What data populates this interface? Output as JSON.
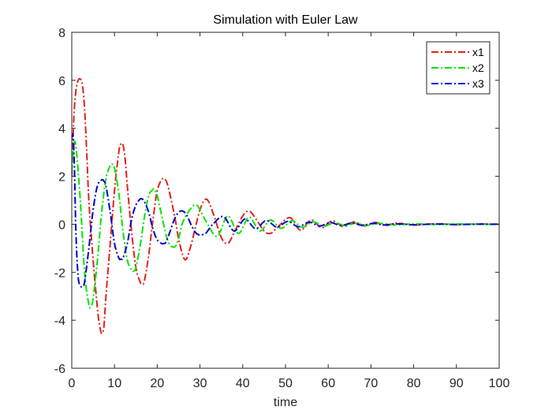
{
  "chart_data": {
    "type": "line",
    "title": "Simulation with Euler Law",
    "xlabel": "time",
    "ylabel": "",
    "xlim": [
      0,
      100
    ],
    "ylim": [
      -6,
      8
    ],
    "xticks": [
      0,
      10,
      20,
      30,
      40,
      50,
      60,
      70,
      80,
      90,
      100
    ],
    "yticks": [
      -6,
      -4,
      -2,
      0,
      2,
      4,
      6,
      8
    ],
    "grid": false,
    "legend_position": "top-right",
    "series": [
      {
        "name": "x1",
        "color": "#e3201b",
        "line_style": "dash-dot",
        "x": [
          0,
          0.5,
          1,
          1.5,
          2,
          2.5,
          3,
          3.5,
          4,
          5,
          6,
          6.5,
          7,
          7.5,
          8,
          9,
          10,
          11,
          11.5,
          12,
          12.5,
          13,
          14,
          15,
          16,
          16.5,
          17,
          18,
          19,
          20,
          21,
          21.7,
          22.5,
          24,
          25,
          26,
          26.8,
          28,
          30,
          31.5,
          33,
          35,
          36.5,
          38,
          40,
          41.5,
          43,
          45,
          46.5,
          48,
          51,
          53.5,
          56,
          58.5,
          61,
          63.5,
          66,
          68.5,
          71,
          73.5,
          76,
          80,
          85,
          90,
          95,
          100
        ],
        "y": [
          2,
          4.5,
          5.6,
          6.0,
          6.05,
          5.8,
          4.8,
          3.0,
          1.0,
          -1.5,
          -3.5,
          -4.2,
          -4.55,
          -4.3,
          -3.0,
          -0.8,
          1.4,
          3.0,
          3.35,
          3.3,
          2.7,
          1.6,
          -0.3,
          -1.8,
          -2.4,
          -2.5,
          -2.35,
          -1.3,
          0.2,
          1.4,
          1.85,
          1.9,
          1.6,
          0.4,
          -0.6,
          -1.3,
          -1.45,
          -0.8,
          0.6,
          1.05,
          0.5,
          -0.55,
          -0.8,
          -0.35,
          0.35,
          0.55,
          0.25,
          -0.28,
          -0.38,
          -0.15,
          0.28,
          -0.25,
          0.18,
          -0.14,
          0.15,
          -0.1,
          0.1,
          -0.07,
          0.08,
          -0.05,
          0.05,
          -0.03,
          0.02,
          -0.01,
          0.01,
          0
        ]
      },
      {
        "name": "x2",
        "color": "#00e600",
        "line_style": "dash-dot",
        "x": [
          0,
          0.5,
          1,
          2,
          3,
          4,
          4.5,
          5,
          6,
          7,
          8,
          9,
          9.5,
          10,
          11,
          12,
          13,
          14,
          14.5,
          15,
          16,
          17,
          18,
          19,
          19.3,
          20,
          21,
          22.5,
          24,
          25,
          26,
          28,
          29.2,
          30,
          31.5,
          34,
          36.5,
          39,
          41.5,
          44,
          46.5,
          49,
          51.5,
          54,
          56.5,
          59,
          61.5,
          64,
          66.5,
          69,
          72,
          76,
          80,
          85,
          90,
          95,
          100
        ],
        "y": [
          2.2,
          3.3,
          3.2,
          1.0,
          -2.0,
          -3.35,
          -3.4,
          -3.1,
          -1.5,
          0.5,
          1.9,
          2.45,
          2.5,
          2.35,
          1.3,
          -0.3,
          -1.5,
          -1.9,
          -1.95,
          -1.8,
          -0.9,
          0.3,
          1.2,
          1.45,
          1.45,
          1.2,
          0.4,
          -0.7,
          -0.95,
          -0.6,
          0.1,
          0.7,
          0.8,
          0.6,
          0.1,
          -0.5,
          0.35,
          -0.38,
          0.3,
          -0.28,
          0.18,
          -0.17,
          0.15,
          -0.12,
          0.1,
          -0.08,
          0.07,
          -0.06,
          0.05,
          -0.04,
          0.04,
          -0.03,
          0.02,
          -0.01,
          0.01,
          0,
          0
        ]
      },
      {
        "name": "x3",
        "color": "#0000cc",
        "line_style": "dash-dot",
        "x": [
          0,
          0.3,
          0.6,
          1,
          1.5,
          2,
          2.5,
          3,
          4,
          5,
          6,
          7,
          7.5,
          8,
          9,
          10,
          11,
          11.5,
          12,
          13,
          14,
          15,
          16,
          16.5,
          17,
          18,
          19,
          20,
          21,
          21.5,
          22,
          23,
          24,
          25,
          26,
          27,
          28,
          29,
          30,
          31,
          31.5,
          33,
          35.5,
          38,
          40.5,
          43,
          45.5,
          48,
          50.5,
          53,
          55.5,
          58,
          60.5,
          63,
          65.5,
          68,
          70.5,
          73,
          76,
          80,
          85,
          90,
          95,
          100
        ],
        "y": [
          3.6,
          3.7,
          2.5,
          -0.5,
          -2.2,
          -2.55,
          -2.6,
          -2.4,
          -1.0,
          0.6,
          1.6,
          1.85,
          1.8,
          1.6,
          0.5,
          -0.8,
          -1.4,
          -1.45,
          -1.4,
          -0.8,
          0.2,
          0.8,
          1.05,
          1.05,
          0.95,
          0.5,
          -0.2,
          -0.65,
          -0.8,
          -0.8,
          -0.75,
          -0.3,
          0.2,
          0.5,
          0.55,
          0.35,
          -0.05,
          -0.35,
          -0.45,
          -0.4,
          -0.35,
          0.0,
          0.32,
          -0.28,
          0.22,
          -0.18,
          0.16,
          -0.12,
          0.12,
          -0.1,
          0.09,
          -0.07,
          0.07,
          -0.05,
          0.05,
          -0.04,
          0.04,
          -0.03,
          0.02,
          -0.02,
          0.01,
          -0.01,
          0.005,
          0
        ]
      }
    ]
  }
}
